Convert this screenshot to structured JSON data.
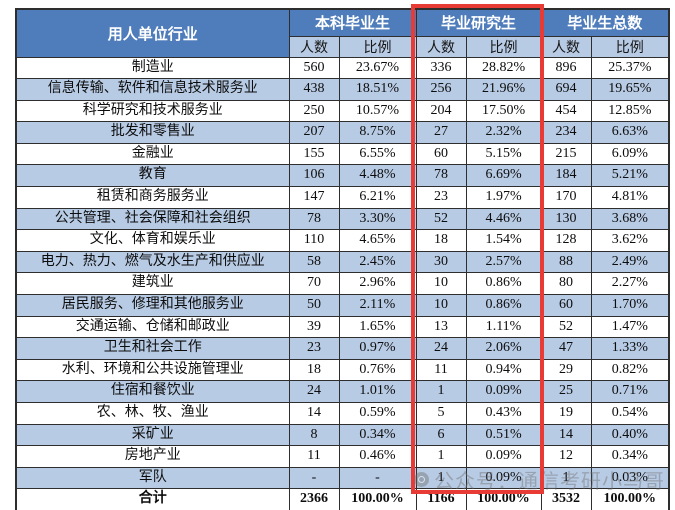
{
  "table": {
    "header": {
      "industry": "用人单位行业",
      "groups": [
        {
          "label": "本科毕业生"
        },
        {
          "label": "毕业研究生"
        },
        {
          "label": "毕业生总数"
        }
      ],
      "sub_labels": [
        "人数",
        "比例",
        "人数",
        "比例",
        "人数",
        "比例"
      ]
    },
    "rows": [
      {
        "industry": "制造业",
        "ug_n": "560",
        "ug_p": "23.67%",
        "pg_n": "336",
        "pg_p": "28.82%",
        "total_n": "896",
        "total_p": "25.37%"
      },
      {
        "industry": "信息传输、软件和信息技术服务业",
        "ug_n": "438",
        "ug_p": "18.51%",
        "pg_n": "256",
        "pg_p": "21.96%",
        "total_n": "694",
        "total_p": "19.65%"
      },
      {
        "industry": "科学研究和技术服务业",
        "ug_n": "250",
        "ug_p": "10.57%",
        "pg_n": "204",
        "pg_p": "17.50%",
        "total_n": "454",
        "total_p": "12.85%"
      },
      {
        "industry": "批发和零售业",
        "ug_n": "207",
        "ug_p": "8.75%",
        "pg_n": "27",
        "pg_p": "2.32%",
        "total_n": "234",
        "total_p": "6.63%"
      },
      {
        "industry": "金融业",
        "ug_n": "155",
        "ug_p": "6.55%",
        "pg_n": "60",
        "pg_p": "5.15%",
        "total_n": "215",
        "total_p": "6.09%"
      },
      {
        "industry": "教育",
        "ug_n": "106",
        "ug_p": "4.48%",
        "pg_n": "78",
        "pg_p": "6.69%",
        "total_n": "184",
        "total_p": "5.21%"
      },
      {
        "industry": "租赁和商务服务业",
        "ug_n": "147",
        "ug_p": "6.21%",
        "pg_n": "23",
        "pg_p": "1.97%",
        "total_n": "170",
        "total_p": "4.81%"
      },
      {
        "industry": "公共管理、社会保障和社会组织",
        "ug_n": "78",
        "ug_p": "3.30%",
        "pg_n": "52",
        "pg_p": "4.46%",
        "total_n": "130",
        "total_p": "3.68%"
      },
      {
        "industry": "文化、体育和娱乐业",
        "ug_n": "110",
        "ug_p": "4.65%",
        "pg_n": "18",
        "pg_p": "1.54%",
        "total_n": "128",
        "total_p": "3.62%"
      },
      {
        "industry": "电力、热力、燃气及水生产和供应业",
        "ug_n": "58",
        "ug_p": "2.45%",
        "pg_n": "30",
        "pg_p": "2.57%",
        "total_n": "88",
        "total_p": "2.49%"
      },
      {
        "industry": "建筑业",
        "ug_n": "70",
        "ug_p": "2.96%",
        "pg_n": "10",
        "pg_p": "0.86%",
        "total_n": "80",
        "total_p": "2.27%"
      },
      {
        "industry": "居民服务、修理和其他服务业",
        "ug_n": "50",
        "ug_p": "2.11%",
        "pg_n": "10",
        "pg_p": "0.86%",
        "total_n": "60",
        "total_p": "1.70%"
      },
      {
        "industry": "交通运输、仓储和邮政业",
        "ug_n": "39",
        "ug_p": "1.65%",
        "pg_n": "13",
        "pg_p": "1.11%",
        "total_n": "52",
        "total_p": "1.47%"
      },
      {
        "industry": "卫生和社会工作",
        "ug_n": "23",
        "ug_p": "0.97%",
        "pg_n": "24",
        "pg_p": "2.06%",
        "total_n": "47",
        "total_p": "1.33%"
      },
      {
        "industry": "水利、环境和公共设施管理业",
        "ug_n": "18",
        "ug_p": "0.76%",
        "pg_n": "11",
        "pg_p": "0.94%",
        "total_n": "29",
        "total_p": "0.82%"
      },
      {
        "industry": "住宿和餐饮业",
        "ug_n": "24",
        "ug_p": "1.01%",
        "pg_n": "1",
        "pg_p": "0.09%",
        "total_n": "25",
        "total_p": "0.71%"
      },
      {
        "industry": "农、林、牧、渔业",
        "ug_n": "14",
        "ug_p": "0.59%",
        "pg_n": "5",
        "pg_p": "0.43%",
        "total_n": "19",
        "total_p": "0.54%"
      },
      {
        "industry": "采矿业",
        "ug_n": "8",
        "ug_p": "0.34%",
        "pg_n": "6",
        "pg_p": "0.51%",
        "total_n": "14",
        "total_p": "0.40%"
      },
      {
        "industry": "房地产业",
        "ug_n": "11",
        "ug_p": "0.46%",
        "pg_n": "1",
        "pg_p": "0.09%",
        "total_n": "12",
        "total_p": "0.34%"
      },
      {
        "industry": "军队",
        "ug_n": "-",
        "ug_p": "-",
        "pg_n": "1",
        "pg_p": "0.09%",
        "total_n": "1",
        "total_p": "0.03%"
      }
    ],
    "total": {
      "industry": "合计",
      "ug_n": "2366",
      "ug_p": "100.00%",
      "pg_n": "1166",
      "pg_p": "100.00%",
      "total_n": "3532",
      "total_p": "100.00%"
    }
  },
  "annotation": {
    "highlighted_group": "毕业研究生",
    "highlight_color": "#e83b35"
  },
  "watermark": {
    "text": "公众号：通信考研小马哥"
  },
  "colors": {
    "header_blue": "#4f7cba",
    "row_blue": "#b8cbe4",
    "border": "#2e2e2e",
    "watermark_gray": "#6e6e6e"
  }
}
